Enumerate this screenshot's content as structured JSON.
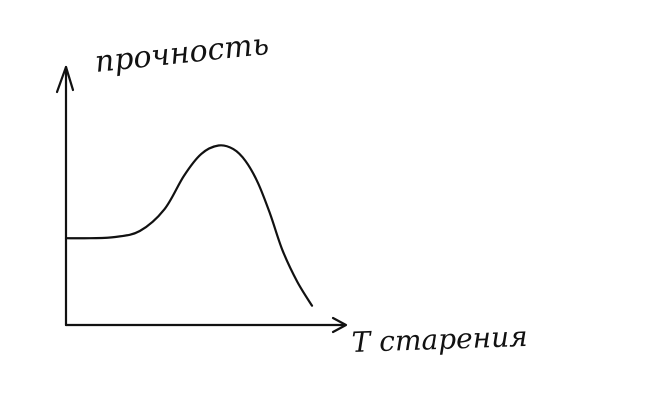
{
  "colors": {
    "ink": "#111111",
    "background": "#ffffff"
  },
  "chart_data": {
    "type": "line",
    "title": "",
    "xlabel": "T старения",
    "ylabel": "прочность",
    "xlim": [
      0,
      10
    ],
    "ylim": [
      0,
      10
    ],
    "grid": false,
    "legend": "none",
    "series": [
      {
        "x": [
          0,
          1.0,
          2.0,
          3.0,
          4.0,
          4.8,
          5.5,
          6.2,
          6.8,
          7.3,
          7.8,
          8.3,
          8.8,
          9.4,
          10.0
        ],
        "values": [
          3.6,
          3.6,
          3.65,
          3.9,
          4.8,
          6.2,
          7.1,
          7.45,
          7.3,
          6.8,
          5.9,
          4.6,
          3.1,
          1.8,
          0.8
        ]
      }
    ]
  }
}
